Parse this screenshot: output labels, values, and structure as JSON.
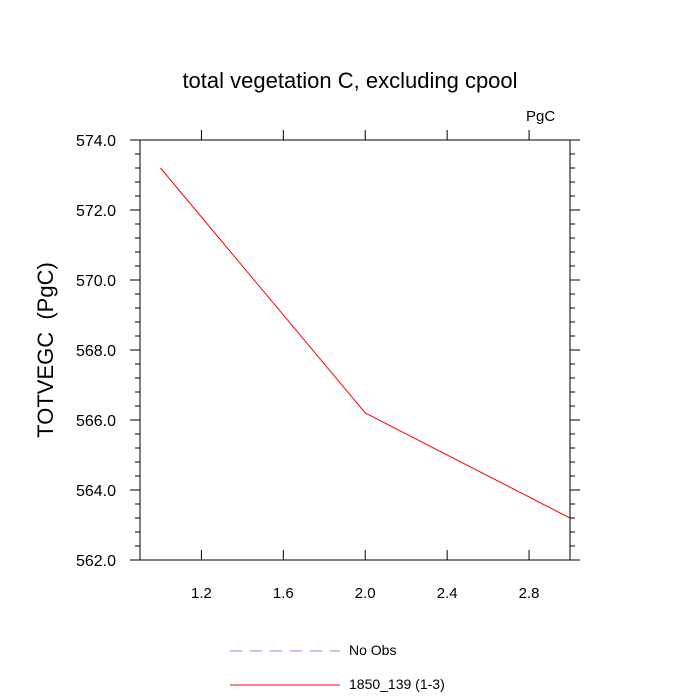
{
  "chart_data": {
    "type": "line",
    "title": "total vegetation C, excluding cpool",
    "units": "PgC",
    "ylabel": "TOTVEGC  (PgC)",
    "xlabel": "",
    "xlim": [
      0.9,
      3.0
    ],
    "ylim": [
      562.0,
      574.0
    ],
    "x_ticks": [
      1.2,
      1.6,
      2.0,
      2.4,
      2.8
    ],
    "x_tick_labels": [
      "1.2",
      "1.6",
      "2.0",
      "2.4",
      "2.8"
    ],
    "y_ticks": [
      562.0,
      564.0,
      566.0,
      568.0,
      570.0,
      572.0,
      574.0
    ],
    "y_tick_labels": [
      "562.0",
      "564.0",
      "566.0",
      "568.0",
      "570.0",
      "572.0",
      "574.0"
    ],
    "grid": false,
    "legend_placement": "bottom",
    "series": [
      {
        "name": "No Obs",
        "color": "#8888ee",
        "dash": "dashed",
        "x": [],
        "y": []
      },
      {
        "name": "1850_139 (1-3)",
        "color": "#ff0000",
        "dash": "solid",
        "x": [
          1.0,
          2.0,
          3.0
        ],
        "y": [
          573.2,
          566.2,
          563.2
        ]
      }
    ]
  }
}
